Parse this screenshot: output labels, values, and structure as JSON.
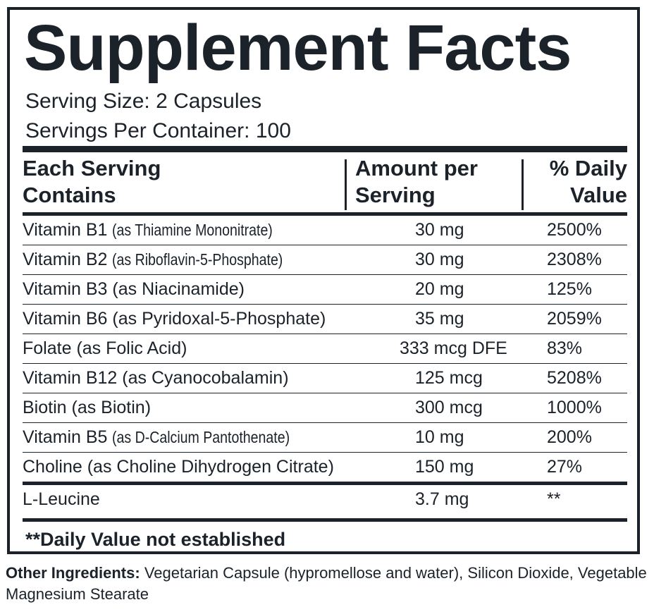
{
  "title": "Supplement Facts",
  "serving_size": "Serving Size: 2 Capsules",
  "servings_per_container": "Servings Per Container: 100",
  "header": {
    "ingredient": [
      "Each Serving",
      "Contains"
    ],
    "amount": [
      "Amount per",
      "Serving"
    ],
    "daily_value": [
      "% Daily",
      "Value"
    ]
  },
  "rows": [
    {
      "name": "Vitamin B1",
      "source": "(as Thiamine Mononitrate)",
      "amount": "30 mg",
      "daily_value": "2500%"
    },
    {
      "name": "Vitamin B2",
      "source": "(as Riboflavin-5-Phosphate)",
      "amount": "30 mg",
      "daily_value": "2308%"
    },
    {
      "name": "Vitamin B3",
      "source": "(as Niacinamide)",
      "amount": "20 mg",
      "daily_value": "125%"
    },
    {
      "name": "Vitamin B6",
      "source": "(as Pyridoxal-5-Phosphate)",
      "amount": "35 mg",
      "daily_value": "2059%"
    },
    {
      "name": "Folate",
      "source": "(as Folic Acid)",
      "amount": "333 mcg DFE",
      "daily_value": "83%"
    },
    {
      "name": "Vitamin B12",
      "source": "(as Cyanocobalamin)",
      "amount": "125 mcg",
      "daily_value": "5208%"
    },
    {
      "name": "Biotin",
      "source": "(as Biotin)",
      "amount": "300 mcg",
      "daily_value": "1000%"
    },
    {
      "name": "Vitamin B5",
      "source": "(as D-Calcium Pantothenate)",
      "amount": "10 mg",
      "daily_value": "200%"
    },
    {
      "name": "Choline",
      "source": "(as Choline Dihydrogen Citrate)",
      "amount": "150 mg",
      "daily_value": "27%"
    },
    {
      "name": "L-Leucine",
      "amount": "3.7 mg",
      "daily_value": "**"
    }
  ],
  "footnote": "**Daily Value not established",
  "other_ingredients": {
    "label": "Other Ingredients:",
    "text": "Vegetarian Capsule (hypromellose and water), Silicon Dioxide, Vegetable Magnesium Stearate"
  }
}
